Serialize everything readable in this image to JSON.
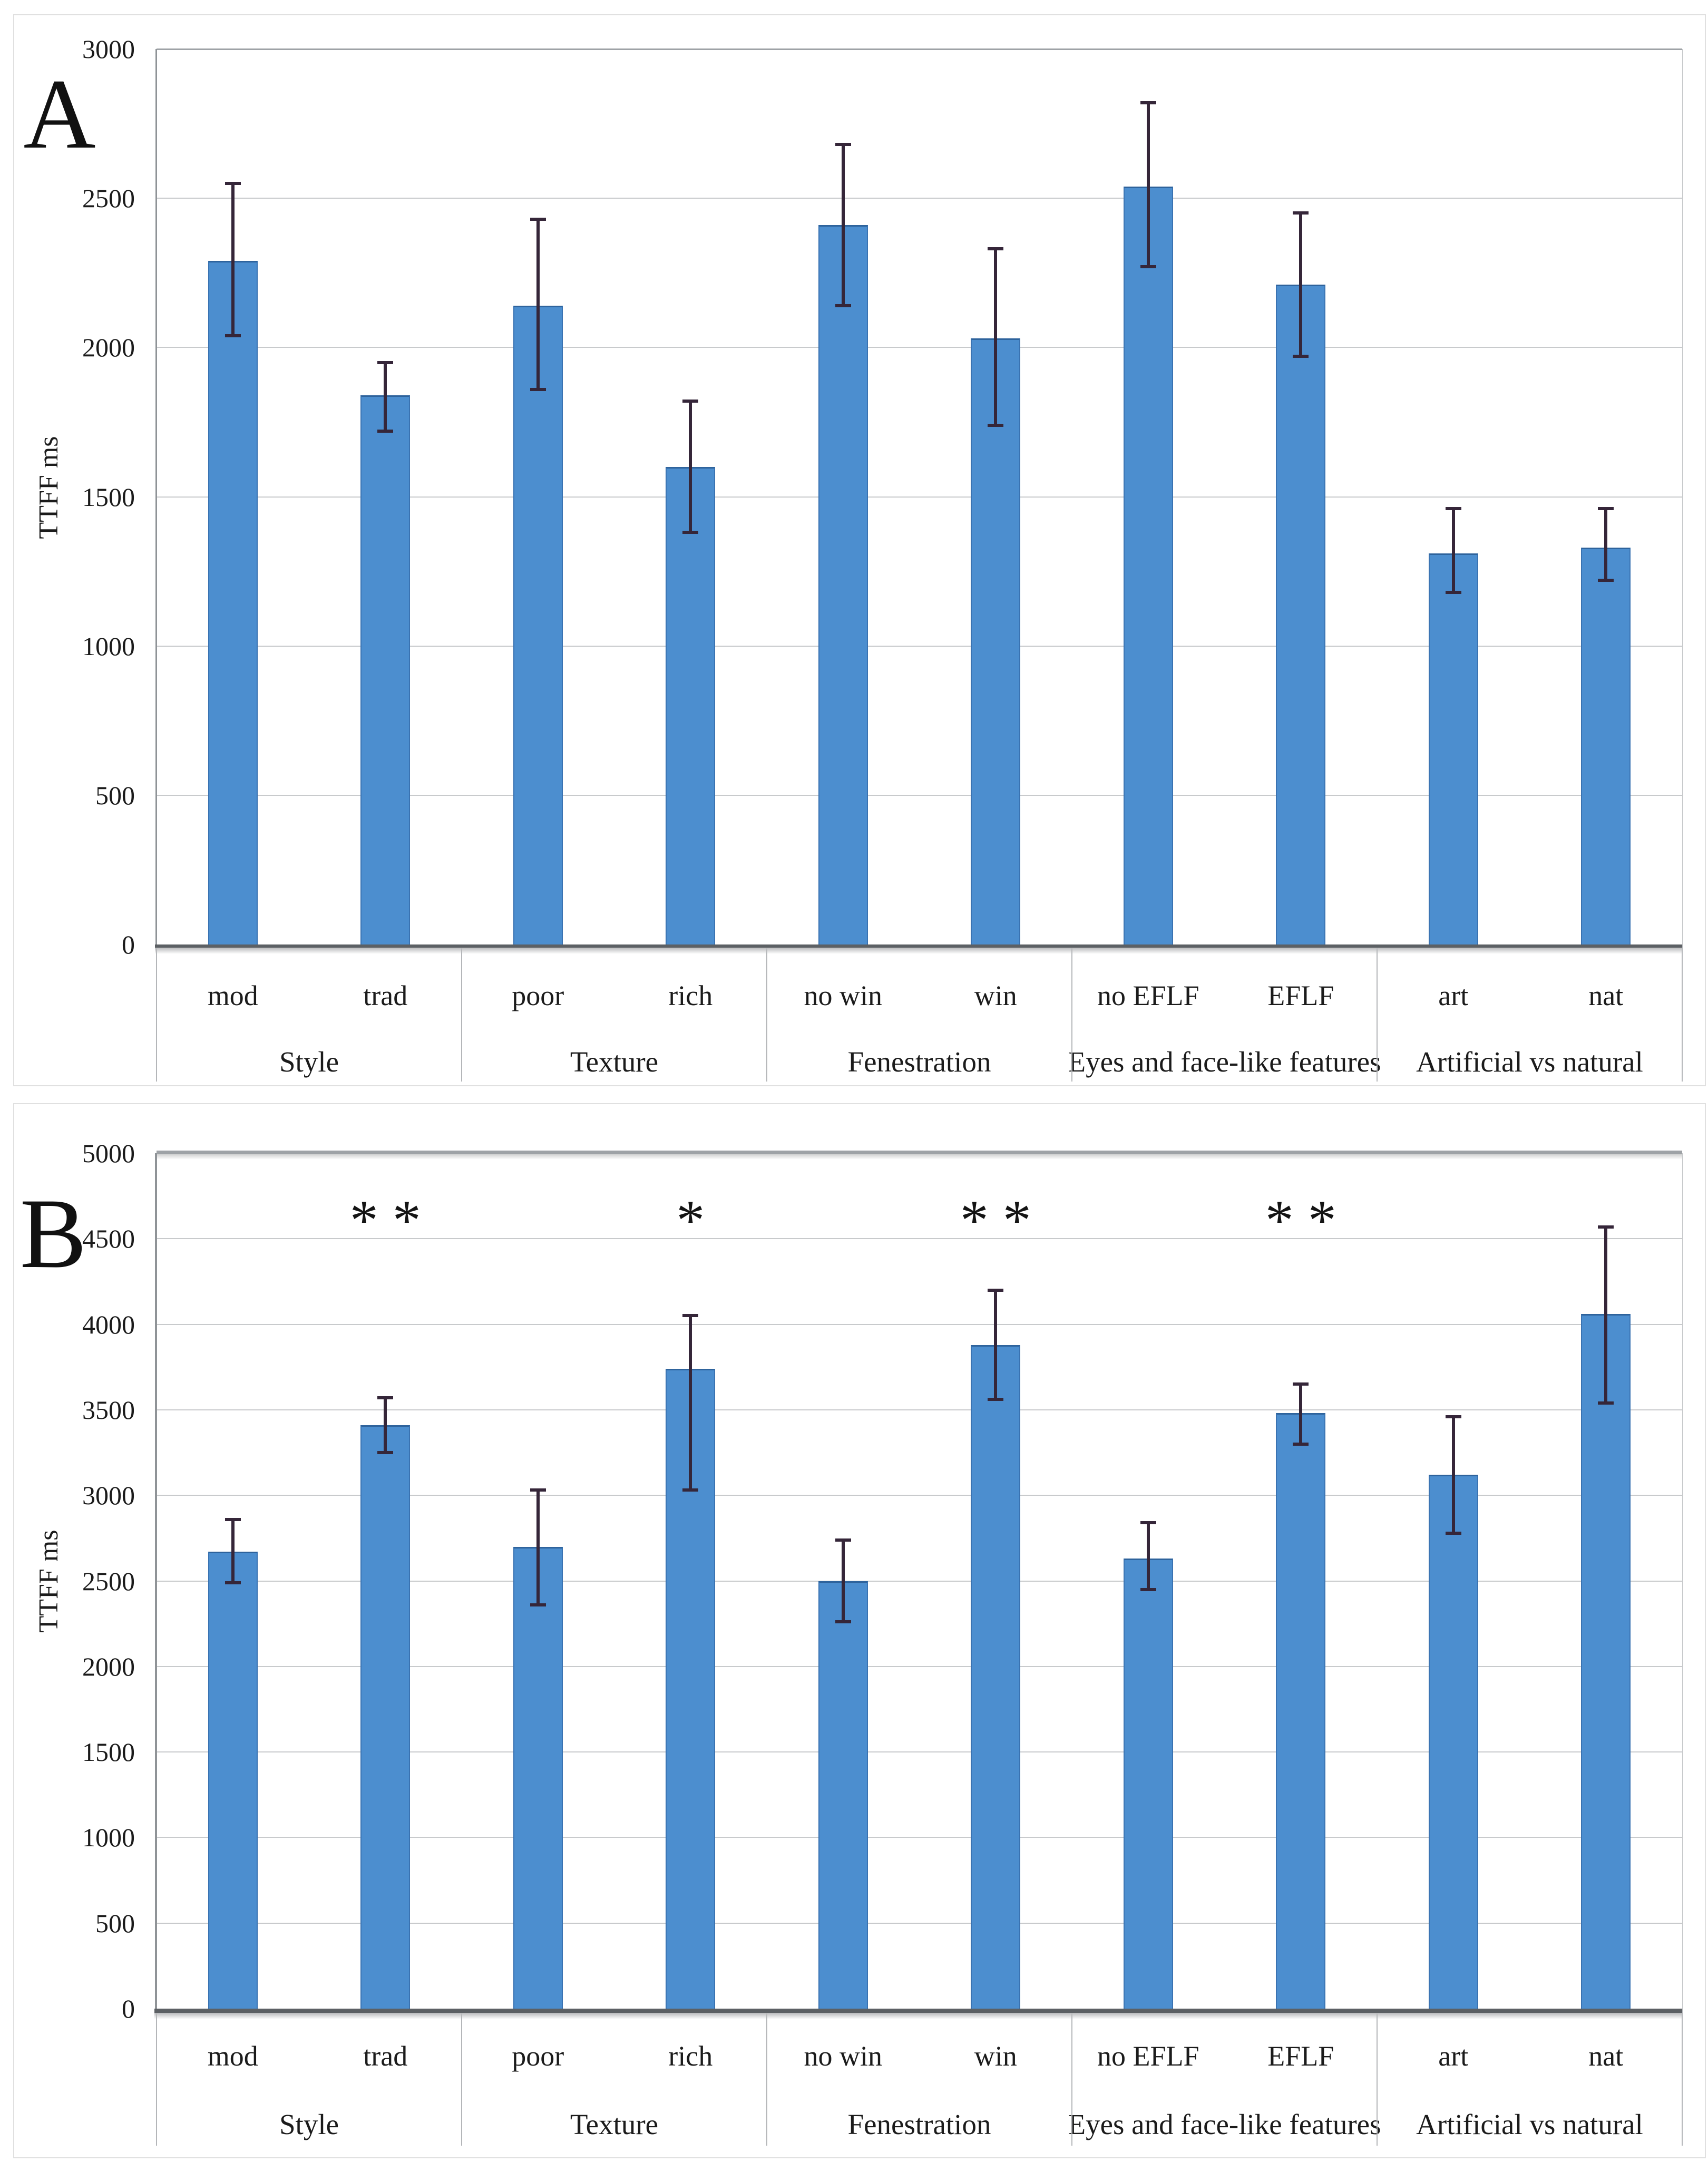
{
  "figure": {
    "panels": [
      {
        "panel_label": "A",
        "y_axis_title": "TTFF ms"
      },
      {
        "panel_label": "B",
        "y_axis_title": "TTFF ms"
      }
    ]
  },
  "chart_data": [
    {
      "type": "bar",
      "panel_label": "A",
      "title": "",
      "xlabel": "",
      "ylabel": "TTFF ms",
      "ylim": [
        0,
        3000
      ],
      "ytick_step": 500,
      "ytick_labels": [
        "3000",
        "2500",
        "2000",
        "1500",
        "1000",
        "500",
        "0"
      ],
      "grid": true,
      "legend": null,
      "bar_color": "#4c8ecf",
      "error_bar_color": "#352639",
      "groups": [
        {
          "label": "Style",
          "categories": [
            "mod",
            "trad"
          ],
          "values": [
            2290,
            1840
          ],
          "error_low": [
            2040,
            1720
          ],
          "error_high": [
            2550,
            1950
          ]
        },
        {
          "label": "Texture",
          "categories": [
            "poor",
            "rich"
          ],
          "values": [
            2140,
            1600
          ],
          "error_low": [
            1860,
            1380
          ],
          "error_high": [
            2430,
            1820
          ]
        },
        {
          "label": "Fenestration",
          "categories": [
            "no win",
            "win"
          ],
          "values": [
            2410,
            2030
          ],
          "error_low": [
            2140,
            1740
          ],
          "error_high": [
            2680,
            2330
          ]
        },
        {
          "label": "Eyes and face-like features",
          "categories": [
            "no EFLF",
            "EFLF"
          ],
          "values": [
            2540,
            2210
          ],
          "error_low": [
            2270,
            1970
          ],
          "error_high": [
            2820,
            2450
          ]
        },
        {
          "label": "Artificial vs natural",
          "categories": [
            "art",
            "nat"
          ],
          "values": [
            1310,
            1330
          ],
          "error_low": [
            1180,
            1220
          ],
          "error_high": [
            1460,
            1460
          ]
        }
      ],
      "significance": []
    },
    {
      "type": "bar",
      "panel_label": "B",
      "title": "",
      "xlabel": "",
      "ylabel": "TTFF ms",
      "ylim": [
        0,
        5000
      ],
      "ytick_step": 500,
      "ytick_labels": [
        "5000",
        "4500",
        "4000",
        "3500",
        "3000",
        "2500",
        "2000",
        "1500",
        "1000",
        "500",
        "0"
      ],
      "grid": true,
      "legend": null,
      "bar_color": "#4c8ecf",
      "error_bar_color": "#352639",
      "groups": [
        {
          "label": "Style",
          "categories": [
            "mod",
            "trad"
          ],
          "values": [
            2670,
            3410
          ],
          "error_low": [
            2490,
            3250
          ],
          "error_high": [
            2860,
            3570
          ]
        },
        {
          "label": "Texture",
          "categories": [
            "poor",
            "rich"
          ],
          "values": [
            2700,
            3740
          ],
          "error_low": [
            2360,
            3030
          ],
          "error_high": [
            3030,
            4050
          ]
        },
        {
          "label": "Fenestration",
          "categories": [
            "no win",
            "win"
          ],
          "values": [
            2500,
            3880
          ],
          "error_low": [
            2260,
            3560
          ],
          "error_high": [
            2740,
            4200
          ]
        },
        {
          "label": "Eyes and face-like features",
          "categories": [
            "no EFLF",
            "EFLF"
          ],
          "values": [
            2630,
            3480
          ],
          "error_low": [
            2450,
            3300
          ],
          "error_high": [
            2840,
            3650
          ]
        },
        {
          "label": "Artificial vs natural",
          "categories": [
            "art",
            "nat"
          ],
          "values": [
            3120,
            4060
          ],
          "error_low": [
            2780,
            3540
          ],
          "error_high": [
            3460,
            4570
          ]
        }
      ],
      "significance": [
        {
          "group": 0,
          "bar": 1,
          "text": "* *"
        },
        {
          "group": 1,
          "bar": 1,
          "text": "*"
        },
        {
          "group": 2,
          "bar": 1,
          "text": "* *"
        },
        {
          "group": 3,
          "bar": 1,
          "text": "* *"
        }
      ]
    }
  ]
}
